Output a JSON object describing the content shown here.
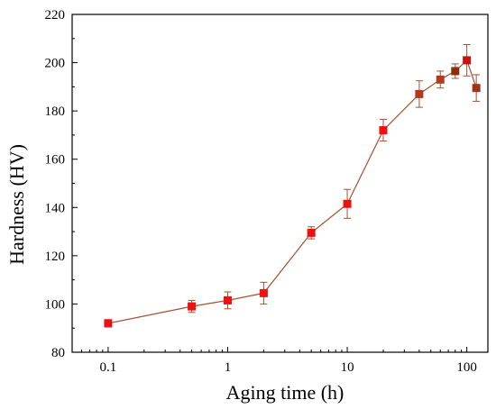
{
  "chart_data": {
    "type": "line",
    "xlabel": "Aging time (h)",
    "ylabel": "Hardness (HV)",
    "x_scale": "log",
    "xlim": [
      0.05,
      150
    ],
    "ylim": [
      80,
      220
    ],
    "x_ticks": [
      0.1,
      1,
      10,
      100
    ],
    "x_tick_labels": [
      "0.1",
      "1",
      "10",
      "100"
    ],
    "y_ticks": [
      80,
      100,
      120,
      140,
      160,
      180,
      200,
      220
    ],
    "y_tick_labels": [
      "80",
      "100",
      "120",
      "140",
      "160",
      "180",
      "200",
      "220"
    ],
    "grid": false,
    "legend": "none",
    "line_color": "#a0522d",
    "marker": "square",
    "series": [
      {
        "x": [
          0.1,
          0.5,
          1,
          2,
          5,
          10,
          20,
          40,
          60,
          80,
          100,
          120
        ],
        "y": [
          92,
          99,
          101.5,
          104.5,
          129.5,
          141.5,
          172,
          187,
          193,
          196.5,
          201,
          189.5
        ],
        "y_error": [
          1.5,
          2.5,
          3.5,
          4.5,
          2.5,
          6,
          4.5,
          5.5,
          3.5,
          3,
          6.5,
          5.5
        ],
        "marker_colors": [
          "#ee1111",
          "#ee1111",
          "#ee1111",
          "#ee1111",
          "#ee1111",
          "#ee1111",
          "#ee1111",
          "#b03a1e",
          "#b03a1e",
          "#8b2e0f",
          "#cc1111",
          "#a03318"
        ]
      }
    ]
  }
}
